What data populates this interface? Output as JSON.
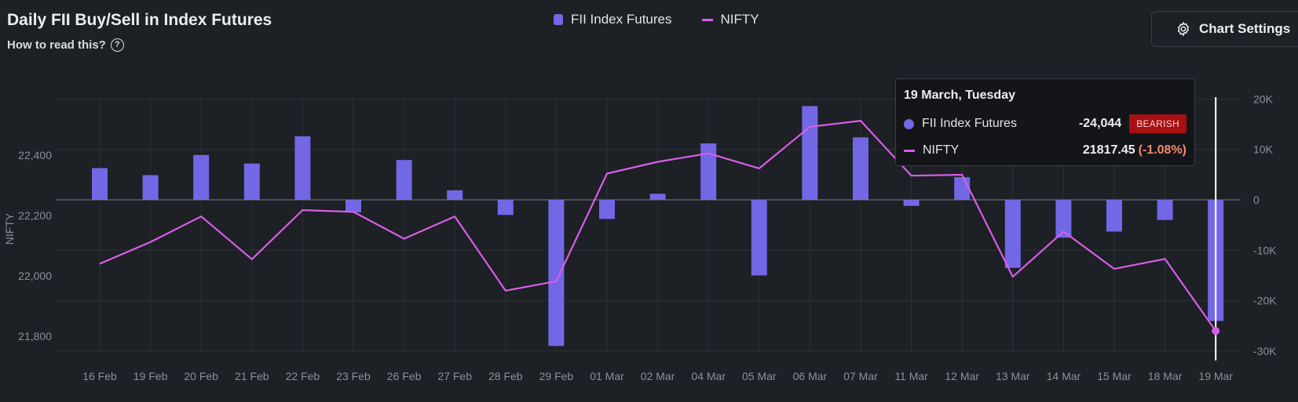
{
  "header": {
    "title": "Daily FII Buy/Sell in Index Futures",
    "help_text": "How to read this?",
    "help_icon": "question-circle-icon"
  },
  "settings": {
    "label": "Chart Settings",
    "icon": "gear-icon"
  },
  "legend": [
    {
      "label": "FII Index Futures",
      "swatch": "bar",
      "color": "#7268e6"
    },
    {
      "label": "NIFTY",
      "swatch": "line",
      "color": "#d85de8"
    }
  ],
  "tooltip": {
    "date": "19 March, Tuesday",
    "fii_label": "FII Index Futures",
    "fii_value": "-24,044",
    "badge": "BEARISH",
    "nifty_label": "NIFTY",
    "nifty_value": "21817.45",
    "nifty_change": "(-1.08%)"
  },
  "chart_data": {
    "type": "bar",
    "categories": [
      "16 Feb",
      "19 Feb",
      "20 Feb",
      "21 Feb",
      "22 Feb",
      "23 Feb",
      "26 Feb",
      "27 Feb",
      "28 Feb",
      "29 Feb",
      "01 Mar",
      "02 Mar",
      "04 Mar",
      "05 Mar",
      "06 Mar",
      "07 Mar",
      "11 Mar",
      "12 Mar",
      "13 Mar",
      "14 Mar",
      "15 Mar",
      "18 Mar",
      "19 Mar"
    ],
    "series": [
      {
        "name": "FII Index Futures",
        "type": "bar",
        "axis": "right",
        "color": "#7268e6",
        "values": [
          6300,
          4900,
          8900,
          7200,
          12600,
          -2500,
          7900,
          1900,
          -3000,
          -29000,
          -3800,
          1200,
          11200,
          -15000,
          18600,
          12400,
          -1200,
          4500,
          -13500,
          -7500,
          -6300,
          -4000,
          -24044
        ]
      },
      {
        "name": "NIFTY",
        "type": "line",
        "axis": "left",
        "color": "#d85de8",
        "values": [
          22040,
          22112,
          22197,
          22055,
          22218,
          22212,
          22123,
          22197,
          21951,
          21982,
          22339,
          22378,
          22406,
          22356,
          22494,
          22514,
          22332,
          22335,
          21997,
          22147,
          22023,
          22056,
          21817.45
        ]
      }
    ],
    "y_left": {
      "label": "NIFTY",
      "ticks": [
        "21,800",
        "22,000",
        "22,200",
        "22,400"
      ],
      "tick_values": [
        21800,
        22000,
        22200,
        22400
      ]
    },
    "y_right": {
      "ticks": [
        "20K",
        "10K",
        "0",
        "-10K",
        "-20K",
        "-30K"
      ],
      "tick_values": [
        20000,
        10000,
        0,
        -10000,
        -20000,
        -30000
      ]
    },
    "grid": true,
    "highlight_index": 22,
    "colors": {
      "bar": "#7268e6",
      "line": "#d85de8",
      "grid": "#2e3238",
      "zero": "#4a4f58"
    }
  }
}
